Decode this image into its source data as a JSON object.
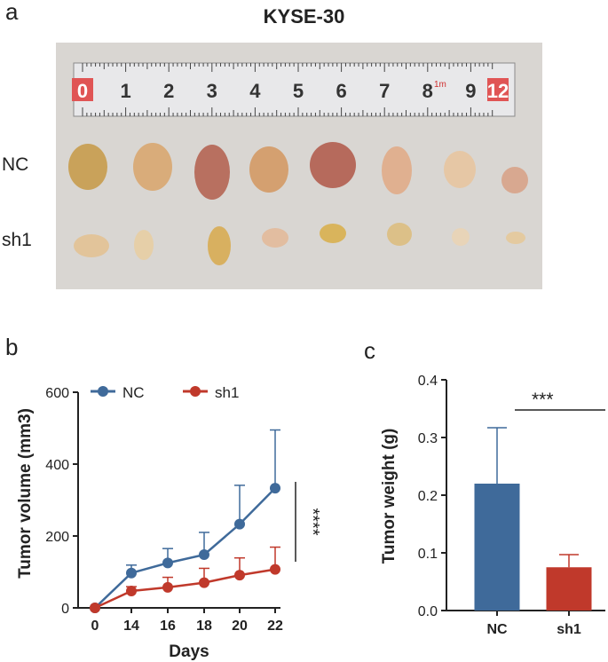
{
  "figure": {
    "title": "KYSE-30",
    "panel_letters": [
      "a",
      "b",
      "c"
    ]
  },
  "photo": {
    "row_labels": [
      "NC",
      "sh1"
    ],
    "ruler_labels": [
      "0",
      "1",
      "2",
      "3",
      "4",
      "5",
      "6",
      "7",
      "8",
      "9",
      "12"
    ],
    "ruler_unit": "1m"
  },
  "colors": {
    "nc": "#3f6a9a",
    "sh1": "#c0392b",
    "axis": "#222222"
  },
  "chart_data": [
    {
      "type": "line",
      "xlabel": "Days",
      "ylabel": "Tumor volume (mm3)",
      "x": [
        0,
        14,
        16,
        18,
        20,
        22
      ],
      "xticks": [
        "0",
        "14",
        "16",
        "18",
        "20",
        "22"
      ],
      "yticks": [
        "0",
        "200",
        "400",
        "600"
      ],
      "ylim": [
        0,
        600
      ],
      "legend_position": "top",
      "significance": "****",
      "series": [
        {
          "name": "NC",
          "values": [
            0,
            97,
            125,
            148,
            233,
            333
          ],
          "error": [
            0,
            22,
            40,
            62,
            108,
            162
          ]
        },
        {
          "name": "sh1",
          "values": [
            0,
            47,
            57,
            70,
            91,
            107
          ],
          "error": [
            0,
            12,
            28,
            40,
            48,
            62
          ]
        }
      ]
    },
    {
      "type": "bar",
      "ylabel": "Tumor weight (g)",
      "categories": [
        "NC",
        "sh1"
      ],
      "values": [
        0.22,
        0.075
      ],
      "error": [
        0.097,
        0.022
      ],
      "yticks": [
        "0.0",
        "0.1",
        "0.2",
        "0.3",
        "0.4"
      ],
      "ylim": [
        0,
        0.4
      ],
      "significance": "***"
    }
  ]
}
